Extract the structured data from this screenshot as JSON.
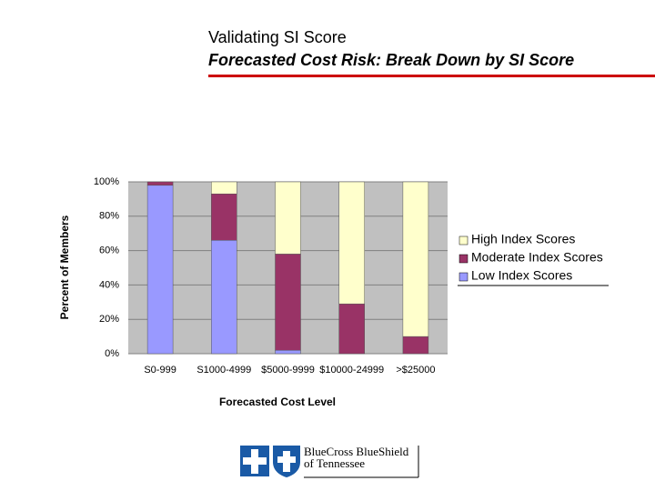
{
  "chart_data": {
    "type": "stacked_bar",
    "title": "Validating SI Score",
    "subtitle": "Forecasted Cost Risk: Break Down by SI Score",
    "x_label": "Forecasted Cost Level",
    "y_label": "Percent of Members",
    "categories": [
      "S0-999",
      "S1000-4999",
      "$5000-9999",
      "$10000-24999",
      ">$25000"
    ],
    "series": [
      {
        "name": "Low Index Scores",
        "color": "#9999ff",
        "values": [
          98,
          66,
          2,
          0,
          0
        ]
      },
      {
        "name": "Moderate Index Scores",
        "color": "#993366",
        "values": [
          2,
          27,
          56,
          29,
          10
        ]
      },
      {
        "name": "High Index Scores",
        "color": "#ffffcc",
        "values": [
          0,
          7,
          42,
          71,
          90
        ]
      }
    ],
    "ylim": [
      0,
      100
    ],
    "yticks": [
      {
        "value": 0,
        "label": "0%"
      },
      {
        "value": 20,
        "label": "20%"
      },
      {
        "value": 40,
        "label": "40%"
      },
      {
        "value": 60,
        "label": "60%"
      },
      {
        "value": 80,
        "label": "80%"
      },
      {
        "value": 100,
        "label": "100%"
      }
    ],
    "grid": true,
    "legend": "right"
  },
  "logo": {
    "line1": "BlueCross BlueShield",
    "line2": "of Tennessee"
  }
}
